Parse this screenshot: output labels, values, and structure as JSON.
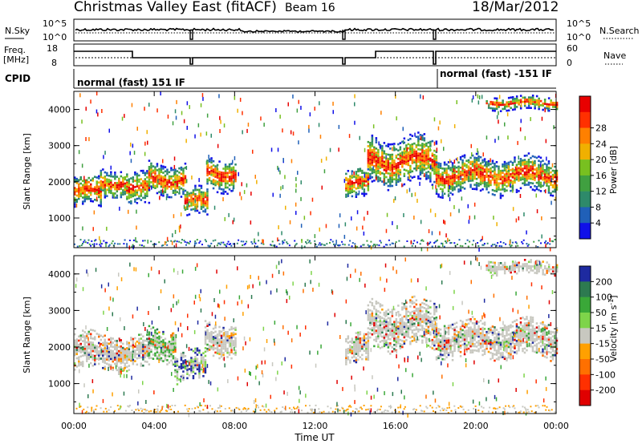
{
  "header": {
    "title": "Christmas Valley East (fitACF)",
    "beam": "Beam 16",
    "date": "18/Mar/2012"
  },
  "top_panels": {
    "nsky_label": "N.Sky",
    "nsearch_label": "N.Search",
    "count_ticks": [
      "10^5",
      "10^0"
    ],
    "freq_label_line1": "Freq.",
    "freq_label_line2": "[MHz]",
    "freq_ticks": [
      "18",
      "8"
    ],
    "nave_label": "Nave",
    "nave_ticks": [
      "60",
      "0"
    ],
    "cpid_label": "CPID",
    "cpid_segments": [
      "normal (fast) 151 IF",
      "normal (fast) -151 IF"
    ]
  },
  "x_axis": {
    "label": "Time UT",
    "ticks": [
      "00:00",
      "04:00",
      "08:00",
      "12:00",
      "16:00",
      "20:00",
      "00:00"
    ]
  },
  "chart_data": [
    {
      "type": "heatmap",
      "name": "power",
      "ylabel": "Slant Range [km]",
      "xlabel": "Time UT",
      "xlim": [
        0,
        24
      ],
      "ylim": [
        180,
        4500
      ],
      "yticks": [
        "1000",
        "2000",
        "3000",
        "4000"
      ],
      "colorbar": {
        "label": "Power [dB]",
        "ticks": [
          "4",
          "8",
          "12",
          "16",
          "20",
          "24",
          "28"
        ],
        "colors": [
          "#1010e8",
          "#2060b8",
          "#2e8a6a",
          "#40a040",
          "#78c020",
          "#f0b000",
          "#ff8000",
          "#ff3000",
          "#e80000"
        ]
      },
      "echo_regions": [
        {
          "t0": 0.0,
          "t1": 1.3,
          "r_center": 1700,
          "r_halfwidth": 420
        },
        {
          "t0": 1.3,
          "t1": 2.6,
          "r_center": 1950,
          "r_halfwidth": 380
        },
        {
          "t0": 2.6,
          "t1": 3.7,
          "r_center": 1750,
          "r_halfwidth": 450
        },
        {
          "t0": 3.7,
          "t1": 5.5,
          "r_center": 2050,
          "r_halfwidth": 450
        },
        {
          "t0": 5.5,
          "t1": 6.6,
          "r_center": 1400,
          "r_halfwidth": 380
        },
        {
          "t0": 6.6,
          "t1": 8.0,
          "r_center": 2200,
          "r_halfwidth": 450
        },
        {
          "t0": 13.5,
          "t1": 14.6,
          "r_center": 1900,
          "r_halfwidth": 420
        },
        {
          "t0": 14.6,
          "t1": 18.0,
          "r_center": 2550,
          "r_halfwidth": 650
        },
        {
          "t0": 18.0,
          "t1": 24.0,
          "r_center": 2150,
          "r_halfwidth": 500
        },
        {
          "t0": 20.5,
          "t1": 24.0,
          "r_center": 4150,
          "r_halfwidth": 180
        }
      ]
    },
    {
      "type": "heatmap",
      "name": "velocity",
      "ylabel": "Slant Range [km]",
      "xlabel": "Time UT",
      "xlim": [
        0,
        24
      ],
      "ylim": [
        180,
        4500
      ],
      "yticks": [
        "1000",
        "2000",
        "3000",
        "4000"
      ],
      "colorbar": {
        "label": "Velocity [m s",
        "label_exponent": "-1",
        "label_close": "]",
        "ticks": [
          "200",
          "100",
          "50",
          "15",
          "-15",
          "-50",
          "-100",
          "-200"
        ],
        "colors": [
          "#1e2aa0",
          "#2d7a50",
          "#3aa838",
          "#7ed44a",
          "#c8c8c0",
          "#ffa000",
          "#ff7000",
          "#ff3000",
          "#e00000"
        ]
      },
      "echo_regions": [
        {
          "t0": 0.0,
          "t1": 2.6,
          "r_center": 1850,
          "r_halfwidth": 500
        },
        {
          "t0": 2.6,
          "t1": 3.7,
          "r_center": 1800,
          "r_halfwidth": 450
        },
        {
          "t0": 3.7,
          "t1": 5.0,
          "r_center": 2050,
          "r_halfwidth": 450
        },
        {
          "t0": 5.0,
          "t1": 6.5,
          "r_center": 1450,
          "r_halfwidth": 420
        },
        {
          "t0": 6.5,
          "t1": 8.0,
          "r_center": 2200,
          "r_halfwidth": 450
        },
        {
          "t0": 13.5,
          "t1": 14.6,
          "r_center": 1900,
          "r_halfwidth": 420
        },
        {
          "t0": 14.6,
          "t1": 18.0,
          "r_center": 2600,
          "r_halfwidth": 650
        },
        {
          "t0": 18.0,
          "t1": 24.0,
          "r_center": 2200,
          "r_halfwidth": 500
        },
        {
          "t0": 20.5,
          "t1": 24.0,
          "r_center": 4150,
          "r_halfwidth": 180
        }
      ]
    }
  ]
}
